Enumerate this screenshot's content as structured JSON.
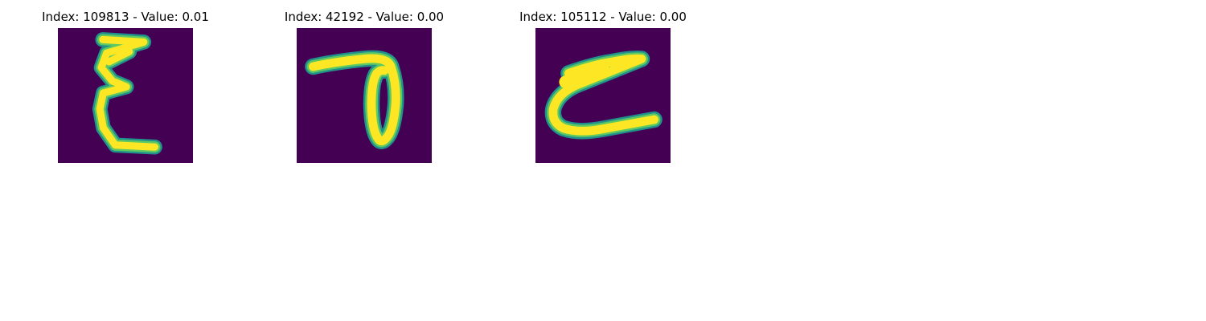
{
  "panels": [
    {
      "title": "Index: 109813 - Value: 0.01",
      "glyph": "epsilon-like handwritten character"
    },
    {
      "title": "Index: 42192 - Value: 0.00",
      "glyph": "loop with horizontal bar handwritten character"
    },
    {
      "title": "Index: 105112 - Value: 0.00",
      "glyph": "c-like handwritten character with top bar"
    }
  ],
  "colors": {
    "background": "#440154",
    "mid_outer": "#21918c",
    "mid_inner": "#5ec962",
    "stroke": "#fde725"
  }
}
